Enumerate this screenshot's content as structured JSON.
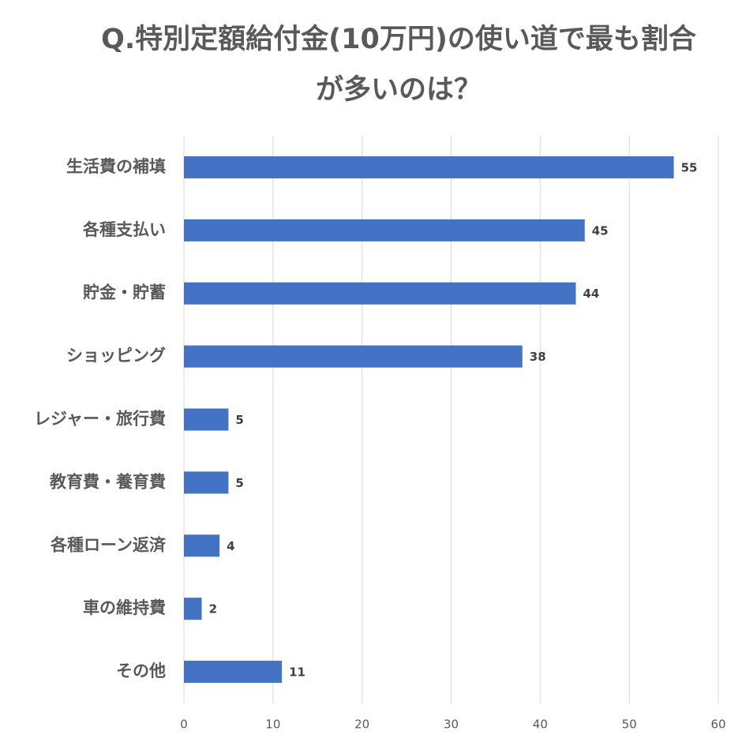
{
  "chart_data": {
    "type": "barh",
    "title": "Q.特別定額給付金(10万円)の使い道で最も割合が多いのは？",
    "categories": [
      "生活費の補填",
      "各種支払い",
      "貯金・貯蓄",
      "ショッピング",
      "レジャー・旅行費",
      "教育費・養育費",
      "各種ローン返済",
      "車の維持費",
      "その他"
    ],
    "values": [
      55,
      45,
      44,
      38,
      5,
      5,
      4,
      2,
      11
    ],
    "color": "#4472c4",
    "xlim": [
      0,
      60
    ],
    "xticks": [
      0,
      10,
      20,
      30,
      40,
      50,
      60
    ],
    "grid": true
  }
}
